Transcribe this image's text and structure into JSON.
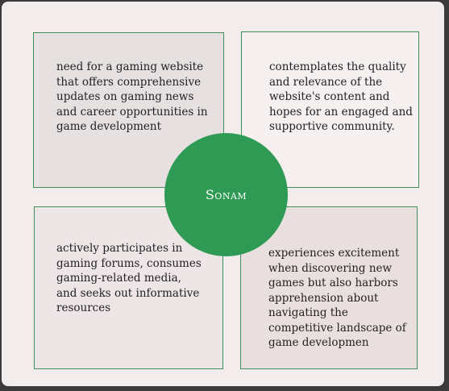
{
  "center_label": "Sonam",
  "quadrants": {
    "top_left": "need for a gaming website\nthat offers comprehensive\nupdates on gaming news\nand career opportunities in\ngame development",
    "top_right": "contemplates the quality\nand relevance of the\nwebsite's content and\nhopes for an engaged and\nsupportive community.",
    "bottom_left": "actively participates in\ngaming forums, consumes\ngaming-related media,\nand seeks out informative\nresources",
    "bottom_right": "experiences excitement\nwhen discovering new\ngames but also harbors\napprehension about\nnavigating the\ncompetitive landscape of\ngame developmen"
  },
  "colors": {
    "accent": "#2f9a54",
    "border": "#3f8f5a",
    "background": "#f2ecec"
  }
}
